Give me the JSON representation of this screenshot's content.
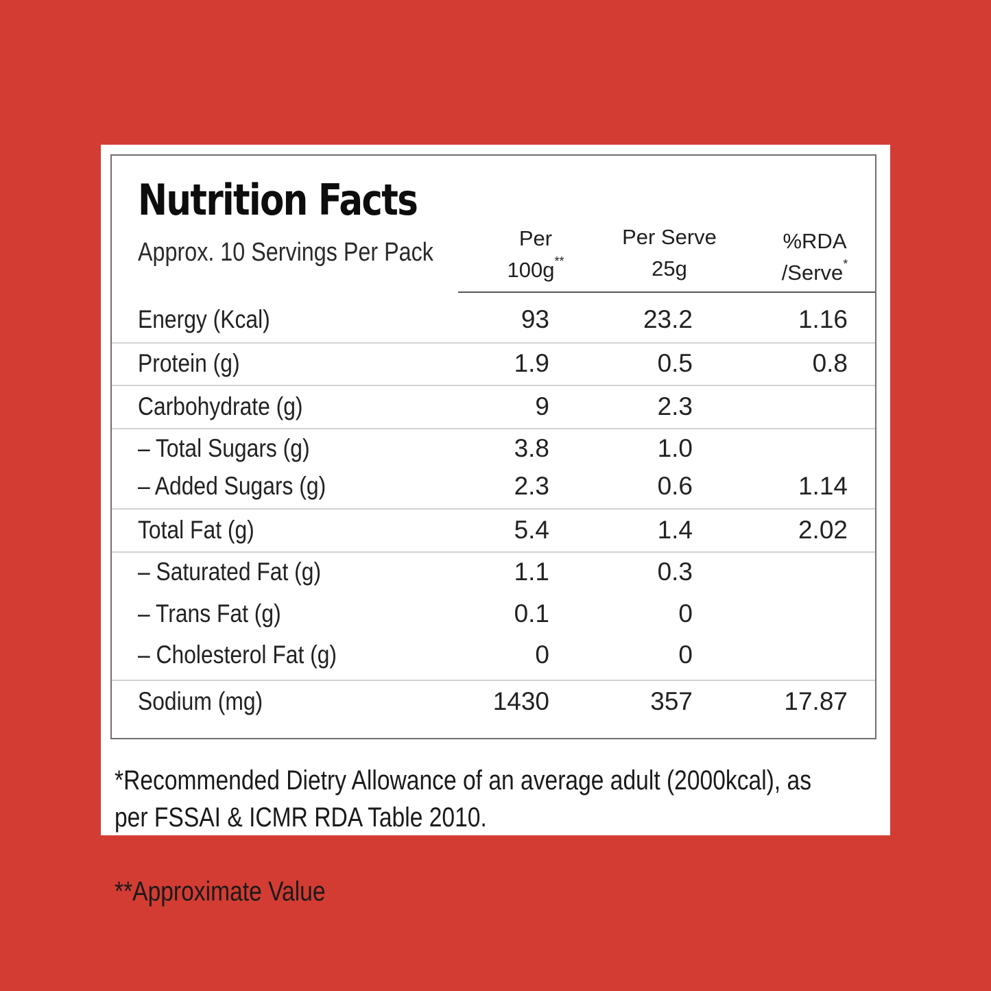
{
  "title": "Nutrition Facts",
  "subtitle": "Approx. 10 Servings Per Pack",
  "columns": {
    "per100": {
      "line1": "Per",
      "line2": "100g",
      "mark": "**"
    },
    "perServe": {
      "line1": "Per Serve",
      "line2": "25g"
    },
    "rda": {
      "line1": "%RDA",
      "line2": "/Serve",
      "mark": "*"
    }
  },
  "rows": [
    {
      "label": "Energy (Kcal)",
      "per100": "93",
      "perServe": "23.2",
      "rda": "1.16"
    },
    {
      "label": "Protein (g)",
      "per100": "1.9",
      "perServe": "0.5",
      "rda": "0.8"
    },
    {
      "label": "Carbohydrate (g)",
      "per100": "9",
      "perServe": "2.3",
      "rda": ""
    },
    {
      "label": "– Total Sugars (g)",
      "per100": "3.8",
      "perServe": "1.0",
      "rda": ""
    },
    {
      "label": "– Added Sugars (g)",
      "per100": "2.3",
      "perServe": "0.6",
      "rda": "1.14"
    },
    {
      "label": "Total Fat (g)",
      "per100": "5.4",
      "perServe": "1.4",
      "rda": "2.02"
    },
    {
      "label": "– Saturated Fat (g)",
      "per100": "1.1",
      "perServe": "0.3",
      "rda": ""
    },
    {
      "label": "– Trans Fat (g)",
      "per100": "0.1",
      "perServe": "0",
      "rda": ""
    },
    {
      "label": "– Cholesterol Fat (g)",
      "per100": "0",
      "perServe": "0",
      "rda": ""
    },
    {
      "label": "Sodium (mg)",
      "per100": "1430",
      "perServe": "357",
      "rda": "17.87"
    }
  ],
  "footer": {
    "line1": "*Recommended Dietry Allowance of an average adult (2000kcal), as",
    "line2a": "per FSSAI & ICMR RDA Table 2010.",
    "line2b": "**Approximate Value"
  },
  "colors": {
    "background": "#d33c33",
    "card": "#ffffff",
    "text": "#1c1c1c"
  }
}
